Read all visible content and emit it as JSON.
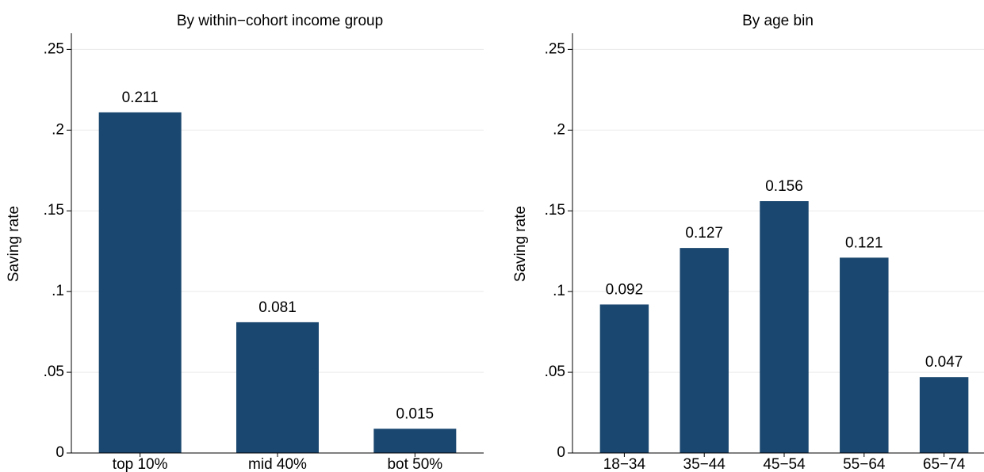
{
  "chart_data": [
    {
      "type": "bar",
      "title": "By within−cohort income group",
      "y_label": "Saving rate",
      "categories": [
        "top 10%",
        "mid 40%",
        "bot 50%"
      ],
      "values": [
        0.211,
        0.081,
        0.015
      ],
      "color": "#1a476f",
      "ylim": [
        0,
        0.26
      ],
      "yticks": [
        0,
        {
          "value": 0.05,
          "label": ".05"
        },
        {
          "value": 0.1,
          "label": ".1"
        },
        {
          "value": 0.15,
          "label": ".15"
        },
        {
          "value": 0.2,
          "label": ".2"
        },
        {
          "value": 0.25,
          "label": ".25"
        }
      ],
      "grid": true
    },
    {
      "type": "bar",
      "title": "By age bin",
      "y_label": "Saving rate",
      "categories": [
        "18−34",
        "35−44",
        "45−54",
        "55−64",
        "65−74"
      ],
      "values": [
        0.092,
        0.127,
        0.156,
        0.121,
        0.047
      ],
      "color": "#1a476f",
      "ylim": [
        0,
        0.26
      ],
      "yticks": [
        0,
        {
          "value": 0.05,
          "label": ".05"
        },
        {
          "value": 0.1,
          "label": ".1"
        },
        {
          "value": 0.15,
          "label": ".15"
        },
        {
          "value": 0.2,
          "label": ".2"
        },
        {
          "value": 0.25,
          "label": ".25"
        }
      ],
      "grid": true
    }
  ]
}
